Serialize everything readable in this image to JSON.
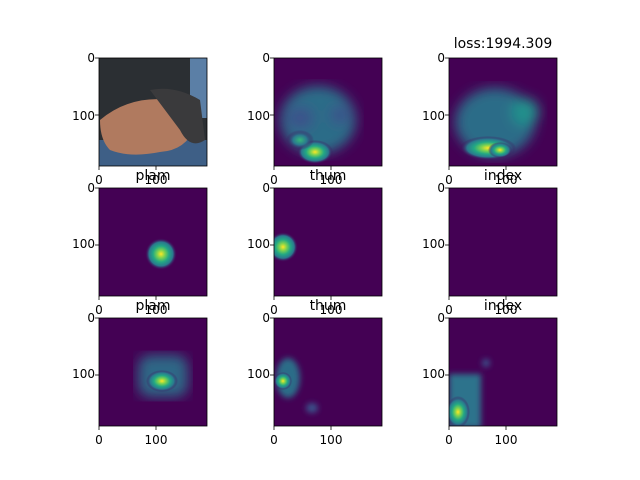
{
  "figure": {
    "panels": [
      {
        "id": "photo",
        "title": "loss:1994.309",
        "show_title": false,
        "xticks": [
          "0",
          "100"
        ],
        "yticks": [
          "0",
          "100"
        ],
        "kind": "photo",
        "colormap": "none"
      },
      {
        "id": "heatmap-pred-a",
        "title": "",
        "xticks": [
          "0",
          "100"
        ],
        "yticks": [
          "0",
          "100"
        ],
        "kind": "heatmap",
        "colormap": "viridis"
      },
      {
        "id": "heatmap-pred-b",
        "title": "loss:1994.309",
        "xticks": [
          "0",
          "100"
        ],
        "yticks": [
          "0",
          "100"
        ],
        "kind": "heatmap",
        "colormap": "viridis"
      },
      {
        "id": "gt-plam",
        "title": "plam",
        "xticks": [
          "0",
          "100"
        ],
        "yticks": [
          "0",
          "100"
        ],
        "kind": "heatmap",
        "colormap": "viridis"
      },
      {
        "id": "gt-thum",
        "title": "thum",
        "xticks": [
          "0",
          "100"
        ],
        "yticks": [
          "0",
          "100"
        ],
        "kind": "heatmap",
        "colormap": "viridis"
      },
      {
        "id": "gt-index",
        "title": "index",
        "xticks": [
          "0",
          "100"
        ],
        "yticks": [
          "0",
          "100"
        ],
        "kind": "heatmap",
        "colormap": "viridis"
      },
      {
        "id": "pred-plam",
        "title": "plam",
        "xticks": [
          "0",
          "100"
        ],
        "yticks": [
          "0",
          "100"
        ],
        "kind": "heatmap",
        "colormap": "viridis"
      },
      {
        "id": "pred-thum",
        "title": "thum",
        "xticks": [
          "0",
          "100"
        ],
        "yticks": [
          "0",
          "100"
        ],
        "kind": "heatmap",
        "colormap": "viridis"
      },
      {
        "id": "pred-index",
        "title": "index",
        "xticks": [
          "0",
          "100"
        ],
        "yticks": [
          "0",
          "100"
        ],
        "kind": "heatmap",
        "colormap": "viridis"
      }
    ],
    "colors": {
      "viridis_low": "#440154",
      "viridis_mid": "#21908c",
      "viridis_high": "#fde725",
      "photo_bg": "#2b2f33",
      "photo_sky": "#5b7fa6",
      "skin": "#b07a5f"
    }
  }
}
